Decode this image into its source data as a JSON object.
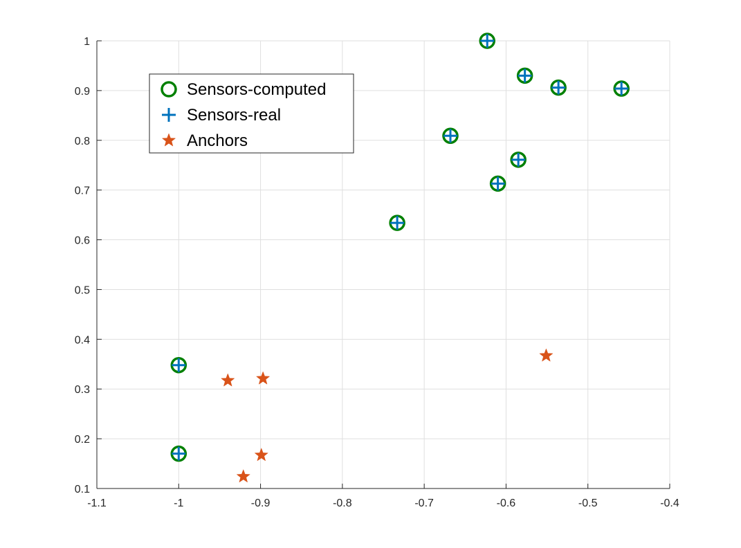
{
  "chart_data": {
    "type": "scatter",
    "title": "",
    "xlabel": "",
    "ylabel": "",
    "xlim": [
      -1.1,
      -0.4
    ],
    "ylim": [
      0.1,
      1.0
    ],
    "xticks": [
      -1.1,
      -1.0,
      -0.9,
      -0.8,
      -0.7,
      -0.6,
      -0.5,
      -0.4
    ],
    "yticks": [
      0.1,
      0.2,
      0.3,
      0.4,
      0.5,
      0.6,
      0.7,
      0.8,
      0.9,
      1.0
    ],
    "xtick_labels": [
      "-1.1",
      "-1",
      "-0.9",
      "-0.8",
      "-0.7",
      "-0.6",
      "-0.5",
      "-0.4"
    ],
    "ytick_labels": [
      "0.1",
      "0.2",
      "0.3",
      "0.4",
      "0.5",
      "0.6",
      "0.7",
      "0.8",
      "0.9",
      "1"
    ],
    "grid": true,
    "legend_position": "top-left",
    "series": [
      {
        "name": "Sensors-computed",
        "marker": "circle",
        "color": "#008000",
        "x": [
          -1.0,
          -1.0,
          -0.733,
          -0.668,
          -0.623,
          -0.61,
          -0.585,
          -0.577,
          -0.536,
          -0.459
        ],
        "y": [
          0.17,
          0.348,
          0.634,
          0.809,
          1.0,
          0.713,
          0.761,
          0.93,
          0.906,
          0.904
        ]
      },
      {
        "name": "Sensors-real",
        "marker": "plus",
        "color": "#0072BD",
        "x": [
          -1.0,
          -1.0,
          -0.733,
          -0.668,
          -0.623,
          -0.61,
          -0.585,
          -0.577,
          -0.536,
          -0.459
        ],
        "y": [
          0.17,
          0.348,
          0.634,
          0.809,
          1.0,
          0.713,
          0.761,
          0.93,
          0.906,
          0.904
        ]
      },
      {
        "name": "Anchors",
        "marker": "star",
        "color": "#D95319",
        "x": [
          -0.94,
          -0.897,
          -0.921,
          -0.899,
          -0.551
        ],
        "y": [
          0.317,
          0.321,
          0.124,
          0.167,
          0.367
        ]
      }
    ]
  }
}
